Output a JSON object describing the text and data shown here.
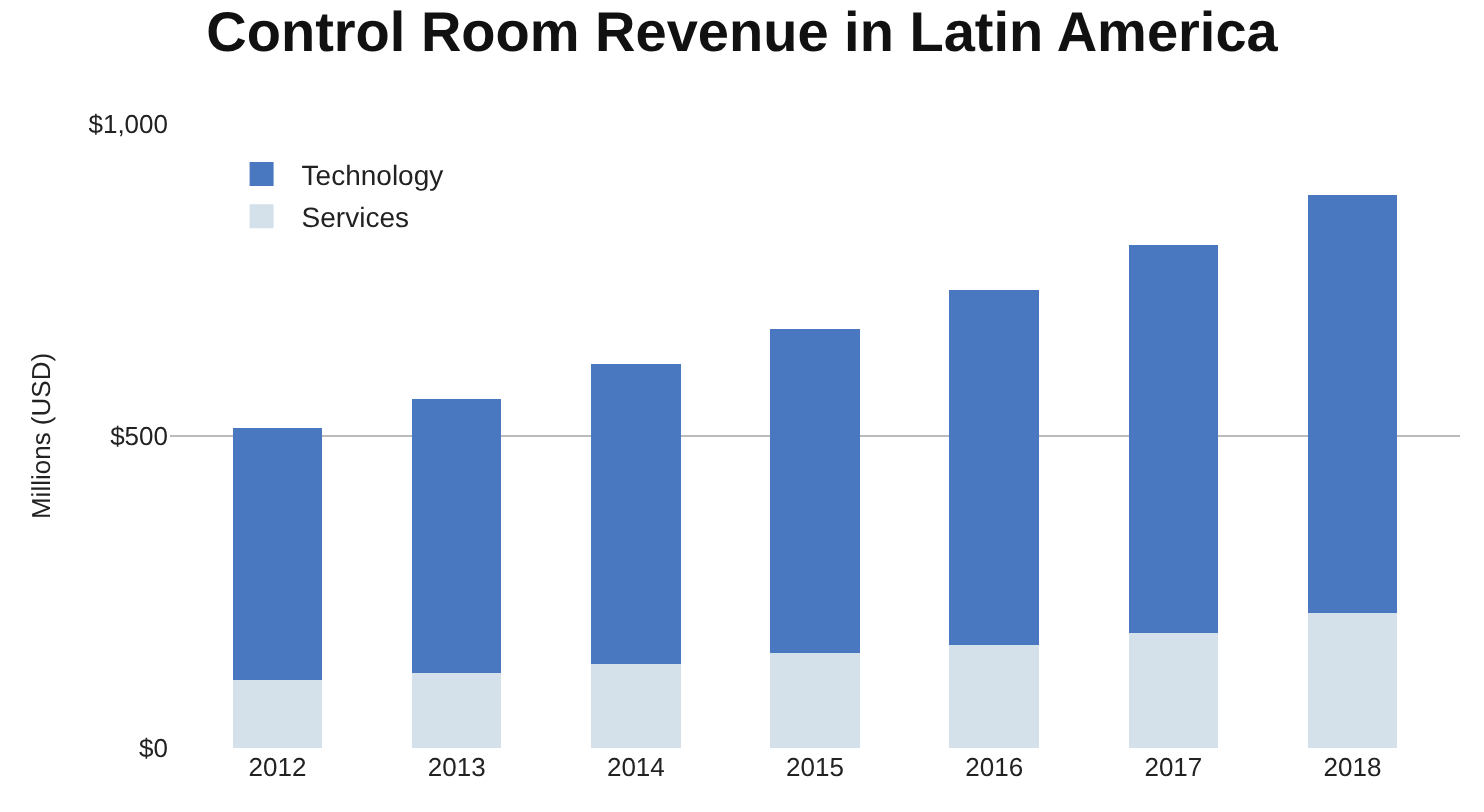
{
  "chart_data": {
    "type": "bar",
    "title": "Control Room Revenue in Latin America",
    "ylabel": "Millions (USD)",
    "categories": [
      "2012",
      "2013",
      "2014",
      "2015",
      "2016",
      "2017",
      "2018"
    ],
    "stacked": true,
    "series": [
      {
        "name": "Services",
        "color": "#d5e1ea",
        "values": [
          109,
          121,
          135,
          152,
          165,
          185,
          217
        ]
      },
      {
        "name": "Technology",
        "color": "#4a78c0",
        "values": [
          404,
          438,
          481,
          520,
          569,
          621,
          670
        ]
      }
    ],
    "ylim": [
      0,
      1000
    ],
    "yticks": [
      {
        "value": 0,
        "label": "$0"
      },
      {
        "value": 500,
        "label": "$500"
      },
      {
        "value": 1000,
        "label": "$1,000"
      }
    ],
    "grid": "y",
    "legend": "top left"
  }
}
